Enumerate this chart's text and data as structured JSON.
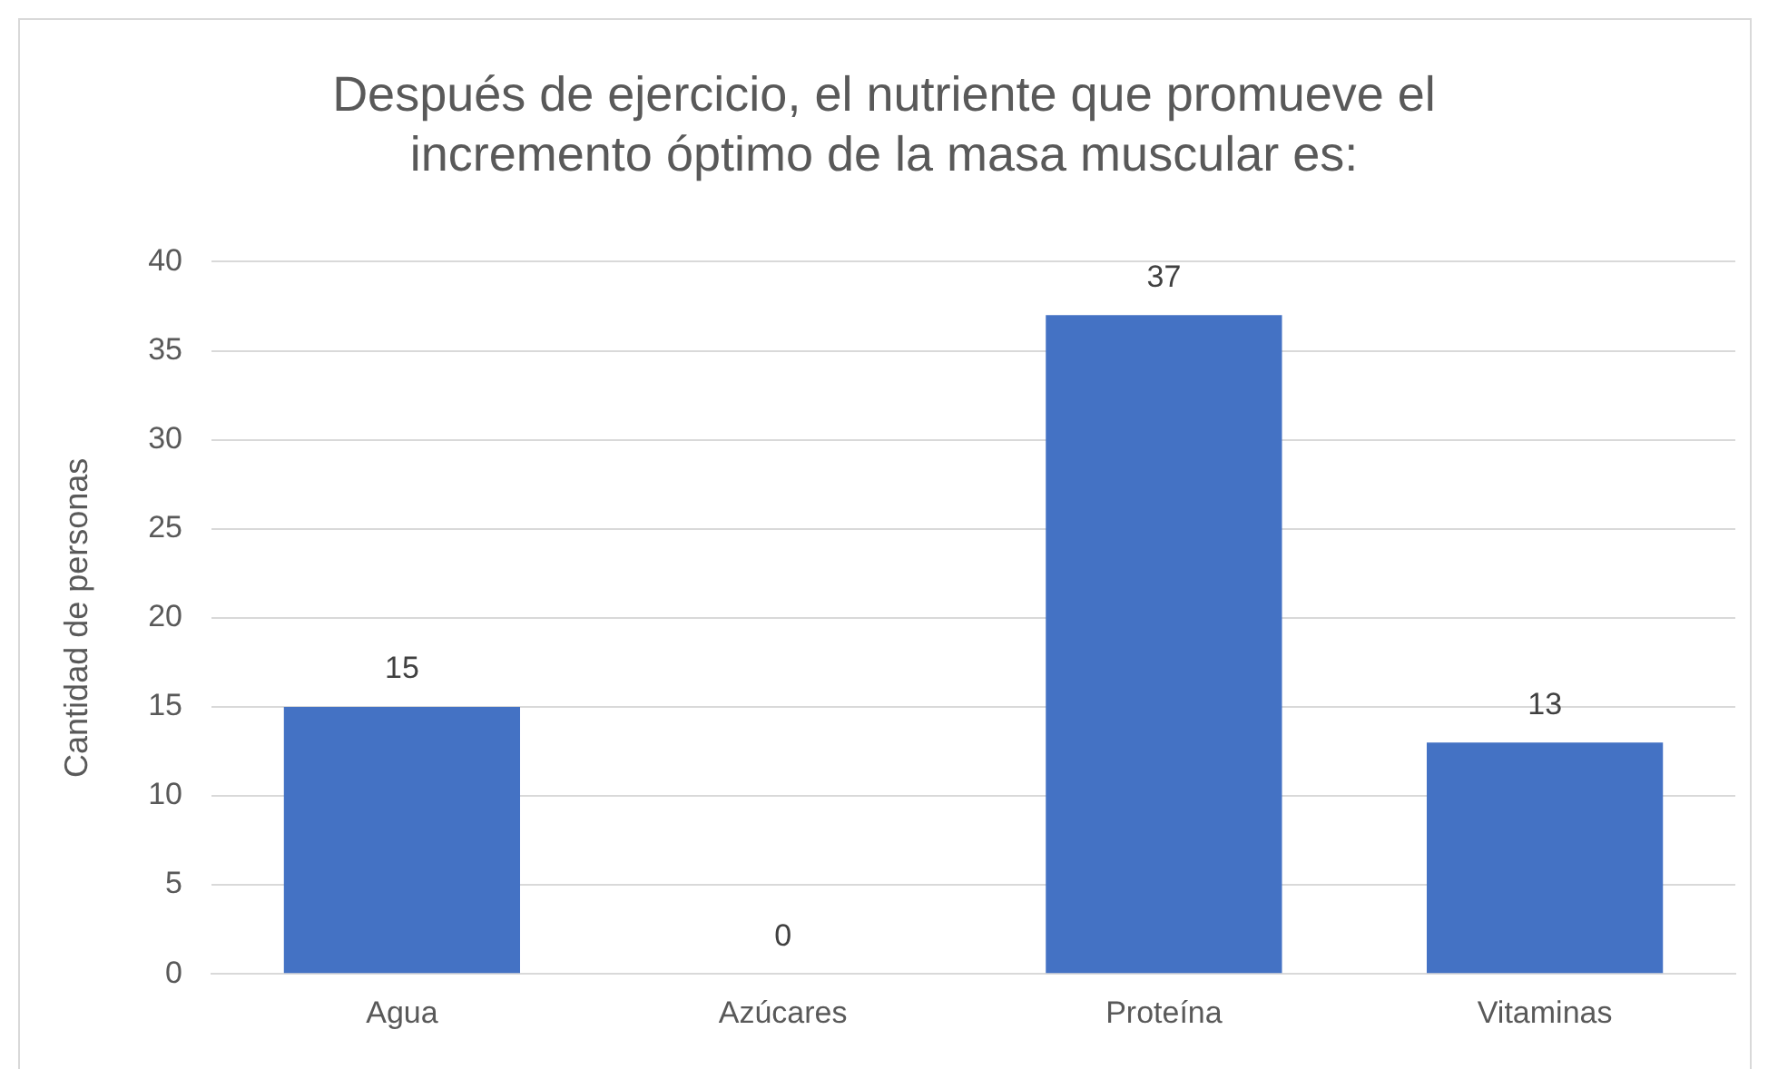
{
  "chart_data": {
    "type": "bar",
    "title": "Después de ejercicio, el nutriente que promueve el incremento óptimo de la masa muscular es:",
    "ylabel": "Cantidad de personas",
    "categories": [
      "Agua",
      "Azúcares",
      "Proteína",
      "Vitaminas"
    ],
    "values": [
      15,
      0,
      37,
      13
    ],
    "color": "#4472c4",
    "ylim": [
      0,
      40
    ],
    "yticks": [
      0,
      5,
      10,
      15,
      20,
      25,
      30,
      35,
      40
    ],
    "grid": "y",
    "data_labels": true,
    "legend": false
  }
}
